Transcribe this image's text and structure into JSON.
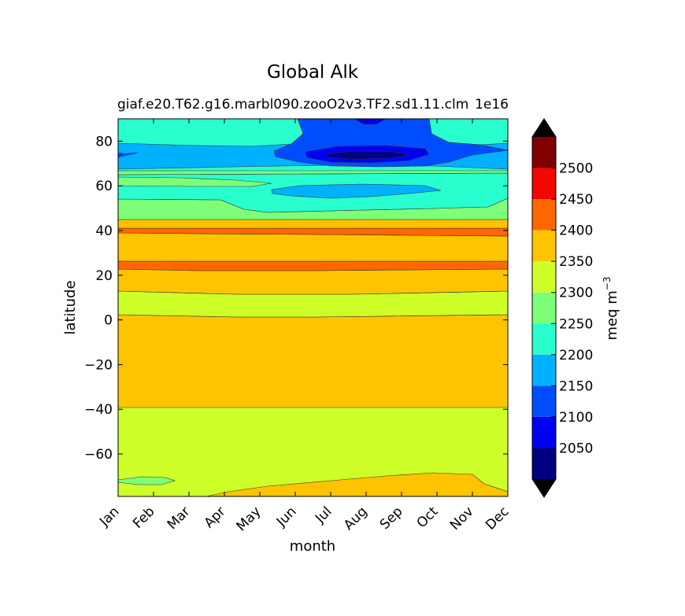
{
  "chart_data": {
    "type": "filled-contour",
    "title": "Global Alk",
    "subtitle_left": "giaf.e20.T62.g16.marbl090.zooO2v3.TF2.sd1.11.clm",
    "subtitle_right": "1e16",
    "xlabel": "month",
    "ylabel": "latitude",
    "x_ticks": [
      "Jan",
      "Feb",
      "Mar",
      "Apr",
      "May",
      "Jun",
      "Jul",
      "Aug",
      "Sep",
      "Oct",
      "Nov",
      "Dec"
    ],
    "ylim": [
      -79,
      90
    ],
    "y_ticks": [
      80,
      60,
      40,
      20,
      0,
      -20,
      -40,
      -60
    ],
    "colorbar": {
      "label": "meq m",
      "label_exponent": "−3",
      "levels": [
        2000,
        2050,
        2100,
        2150,
        2200,
        2250,
        2300,
        2350,
        2400,
        2450,
        2500,
        2550
      ],
      "tick_labels": [
        "2050",
        "2100",
        "2150",
        "2200",
        "2250",
        "2300",
        "2350",
        "2400",
        "2450",
        "2500"
      ],
      "colors": [
        "#000080",
        "#0000f1",
        "#004dff",
        "#00b1ff",
        "#29ffce",
        "#7dff7a",
        "#ceff29",
        "#ffc400",
        "#ff6800",
        "#f10800",
        "#800000"
      ],
      "under_color": "#000000",
      "over_color": "#000000"
    },
    "regions_by_latitude": [
      {
        "lat_range": [
          -79,
          -40
        ],
        "range": "2300–2350"
      },
      {
        "lat_range": [
          -40,
          2
        ],
        "range": "2350–2400"
      },
      {
        "lat_range": [
          2,
          12
        ],
        "range": "2300–2350"
      },
      {
        "lat_range": [
          12,
          22
        ],
        "range": "2350–2400"
      },
      {
        "lat_range": [
          22,
          26
        ],
        "range": "2400–2450"
      },
      {
        "lat_range": [
          26,
          38
        ],
        "range": "2350–2400"
      },
      {
        "lat_range": [
          38,
          42
        ],
        "range": "2400–2450"
      },
      {
        "lat_range": [
          42,
          45
        ],
        "range": "2350–2400"
      },
      {
        "lat_range": [
          45,
          55
        ],
        "range": "2250–2300"
      },
      {
        "lat_range": [
          55,
          70
        ],
        "range": "2150–2250"
      },
      {
        "lat_range": [
          70,
          90
        ],
        "range": "2050–2200"
      }
    ]
  }
}
